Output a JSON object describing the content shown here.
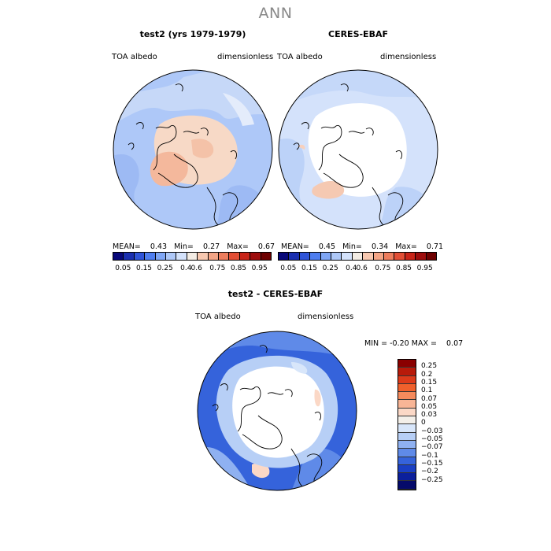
{
  "title": "ANN",
  "panels": [
    {
      "title": "test2 (yrs 1979-1979)",
      "variable": "TOA albedo",
      "units": "dimensionless",
      "mean_label": "MEAN=",
      "mean": "0.43",
      "min_label": "Min=",
      "min": "0.27",
      "max_label": "Max=",
      "max": "0.67"
    },
    {
      "title": "CERES-EBAF",
      "variable": "TOA albedo",
      "units": "dimensionless",
      "mean_label": "MEAN=",
      "mean": "0.45",
      "min_label": "Min=",
      "min": "0.34",
      "max_label": "Max=",
      "max": "0.71"
    }
  ],
  "abs_colorbar": {
    "labels": [
      "0.05",
      "0.15",
      "0.25",
      "0.4",
      "0.6",
      "0.75",
      "0.85",
      "0.95"
    ],
    "colors": [
      "#08087a",
      "#1a2fb0",
      "#2f54d8",
      "#4f7ef0",
      "#7fa6f5",
      "#aec8f8",
      "#d4e2fb",
      "#f3ece4",
      "#f7c8b0",
      "#f4a586",
      "#ee7d5d",
      "#e24e35",
      "#c92418",
      "#9e0c0c",
      "#6e0000"
    ]
  },
  "diff_panel": {
    "title": "test2 - CERES-EBAF",
    "variable": "TOA albedo",
    "units": "dimensionless",
    "min_label": "MIN =",
    "min": "-0.20",
    "max_label": "MAX =",
    "max": "0.07"
  },
  "diff_colorbar": {
    "labels": [
      "0.25",
      "0.2",
      "0.15",
      "0.1",
      "0.07",
      "0.05",
      "0.03",
      "0",
      "−0.03",
      "−0.05",
      "−0.07",
      "−0.1",
      "−0.15",
      "−0.2",
      "−0.25"
    ],
    "colors": [
      "#8a0000",
      "#b81a0a",
      "#dd3a1a",
      "#f0602c",
      "#f58a5c",
      "#f8b596",
      "#fbd8c6",
      "#f3efe9",
      "#d8e6fa",
      "#b7cff6",
      "#8fb1f1",
      "#5f8ae8",
      "#3563db",
      "#1a3fc4",
      "#0b1f9c",
      "#050a6a"
    ]
  }
}
